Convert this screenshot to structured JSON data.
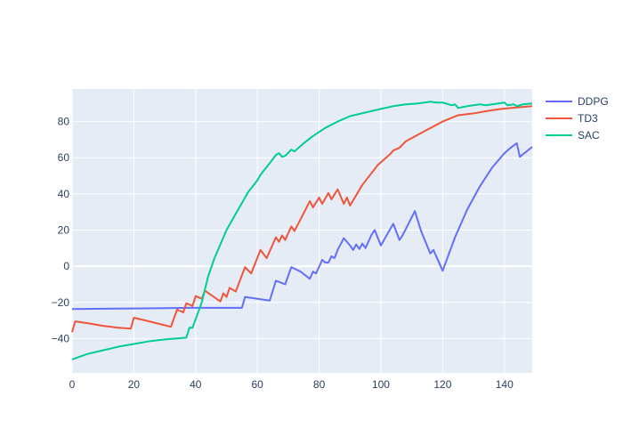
{
  "chart_data": {
    "type": "line",
    "title": "",
    "xlabel": "",
    "ylabel": "",
    "xlim": [
      0,
      149
    ],
    "ylim": [
      -59,
      98
    ],
    "xticks": [
      0,
      20,
      40,
      60,
      80,
      100,
      120,
      140
    ],
    "yticks": [
      -40,
      -20,
      0,
      20,
      40,
      60,
      80
    ],
    "grid": true,
    "legend_position": "top-right",
    "colors": {
      "plot_bg": "#e5ecf6",
      "grid": "#ffffff",
      "text": "#2a3f5f"
    },
    "series": [
      {
        "name": "DDPG",
        "color": "#636efa",
        "points": [
          [
            0,
            -23.7
          ],
          [
            10,
            -23.5
          ],
          [
            20,
            -23.4
          ],
          [
            30,
            -23.2
          ],
          [
            38,
            -23
          ],
          [
            46,
            -23
          ],
          [
            55,
            -23
          ],
          [
            56,
            -17
          ],
          [
            64,
            -19
          ],
          [
            66,
            -8
          ],
          [
            69,
            -10
          ],
          [
            71,
            -0.5
          ],
          [
            74,
            -3
          ],
          [
            77,
            -7
          ],
          [
            78,
            -3
          ],
          [
            79,
            -4
          ],
          [
            81,
            3.5
          ],
          [
            82,
            2
          ],
          [
            83,
            2
          ],
          [
            84,
            5.5
          ],
          [
            85,
            4.5
          ],
          [
            86,
            9
          ],
          [
            88,
            15.5
          ],
          [
            90,
            11.5
          ],
          [
            91,
            9
          ],
          [
            92,
            12
          ],
          [
            93,
            9.5
          ],
          [
            94,
            12.5
          ],
          [
            95,
            10
          ],
          [
            97,
            17.5
          ],
          [
            98,
            20
          ],
          [
            100,
            11.5
          ],
          [
            102,
            17.5
          ],
          [
            104,
            23.5
          ],
          [
            106,
            14.5
          ],
          [
            107,
            17
          ],
          [
            111,
            30.5
          ],
          [
            113,
            19.5
          ],
          [
            116,
            7
          ],
          [
            117,
            9
          ],
          [
            120,
            -2.5
          ],
          [
            124,
            16
          ],
          [
            128,
            31.5
          ],
          [
            132,
            44
          ],
          [
            136,
            54.5
          ],
          [
            140,
            62.5
          ],
          [
            142,
            65.5
          ],
          [
            144,
            68
          ],
          [
            145,
            60.5
          ],
          [
            149,
            66
          ]
        ]
      },
      {
        "name": "TD3",
        "color": "#ef553b",
        "points": [
          [
            0,
            -36.5
          ],
          [
            1,
            -30.5
          ],
          [
            5,
            -31.5
          ],
          [
            10,
            -33
          ],
          [
            15,
            -34
          ],
          [
            19,
            -34.5
          ],
          [
            20,
            -28.5
          ],
          [
            25,
            -30.5
          ],
          [
            32,
            -33.5
          ],
          [
            34,
            -24
          ],
          [
            36,
            -25.5
          ],
          [
            37,
            -20.5
          ],
          [
            39,
            -22
          ],
          [
            40,
            -16.5
          ],
          [
            42,
            -18
          ],
          [
            43,
            -13.5
          ],
          [
            48,
            -19.5
          ],
          [
            49,
            -15
          ],
          [
            50,
            -17
          ],
          [
            51,
            -12
          ],
          [
            53,
            -14
          ],
          [
            56,
            -0.5
          ],
          [
            58,
            -4
          ],
          [
            61,
            9
          ],
          [
            63,
            4.5
          ],
          [
            66,
            16
          ],
          [
            67,
            13.5
          ],
          [
            68,
            17
          ],
          [
            69,
            14.5
          ],
          [
            71,
            22
          ],
          [
            72,
            19.5
          ],
          [
            74,
            26
          ],
          [
            77,
            36
          ],
          [
            78,
            32.5
          ],
          [
            80,
            38
          ],
          [
            81,
            34.5
          ],
          [
            83,
            40.5
          ],
          [
            84,
            37
          ],
          [
            86,
            42.5
          ],
          [
            88,
            34.5
          ],
          [
            89,
            38
          ],
          [
            90,
            33.5
          ],
          [
            94,
            45
          ],
          [
            99,
            56
          ],
          [
            103,
            62
          ],
          [
            104,
            64
          ],
          [
            106,
            65.5
          ],
          [
            108,
            69
          ],
          [
            115,
            75.5
          ],
          [
            120,
            80
          ],
          [
            125,
            83.5
          ],
          [
            130,
            84.5
          ],
          [
            135,
            86
          ],
          [
            139,
            87
          ],
          [
            142,
            87.5
          ],
          [
            149,
            88.5
          ]
        ]
      },
      {
        "name": "SAC",
        "color": "#00cc96",
        "points": [
          [
            0,
            -51.5
          ],
          [
            5,
            -48.5
          ],
          [
            10,
            -46.5
          ],
          [
            15,
            -44.5
          ],
          [
            20,
            -43
          ],
          [
            25,
            -41.5
          ],
          [
            30,
            -40.5
          ],
          [
            37,
            -39.5
          ],
          [
            38,
            -34
          ],
          [
            39,
            -34
          ],
          [
            42,
            -20
          ],
          [
            44,
            -6
          ],
          [
            46,
            4
          ],
          [
            48,
            12
          ],
          [
            50,
            20
          ],
          [
            53,
            29
          ],
          [
            57,
            41
          ],
          [
            60,
            47.5
          ],
          [
            61,
            50.5
          ],
          [
            64,
            57
          ],
          [
            66,
            61.5
          ],
          [
            67,
            62.5
          ],
          [
            68,
            60.5
          ],
          [
            69,
            61
          ],
          [
            71,
            64.5
          ],
          [
            72,
            63.5
          ],
          [
            75,
            68
          ],
          [
            78,
            72
          ],
          [
            82,
            76.5
          ],
          [
            86,
            80
          ],
          [
            90,
            83
          ],
          [
            95,
            85
          ],
          [
            100,
            87
          ],
          [
            104,
            88.5
          ],
          [
            108,
            89.5
          ],
          [
            112,
            90
          ],
          [
            116,
            91
          ],
          [
            118,
            90.5
          ],
          [
            120,
            90.5
          ],
          [
            121,
            90
          ],
          [
            123,
            89
          ],
          [
            124,
            89.5
          ],
          [
            125,
            87.5
          ],
          [
            128,
            88.5
          ],
          [
            132,
            89.5
          ],
          [
            134,
            89
          ],
          [
            138,
            90
          ],
          [
            140,
            90.5
          ],
          [
            141,
            89
          ],
          [
            143,
            89.5
          ],
          [
            144,
            88.5
          ],
          [
            146,
            89.5
          ],
          [
            149,
            90
          ]
        ]
      }
    ]
  }
}
